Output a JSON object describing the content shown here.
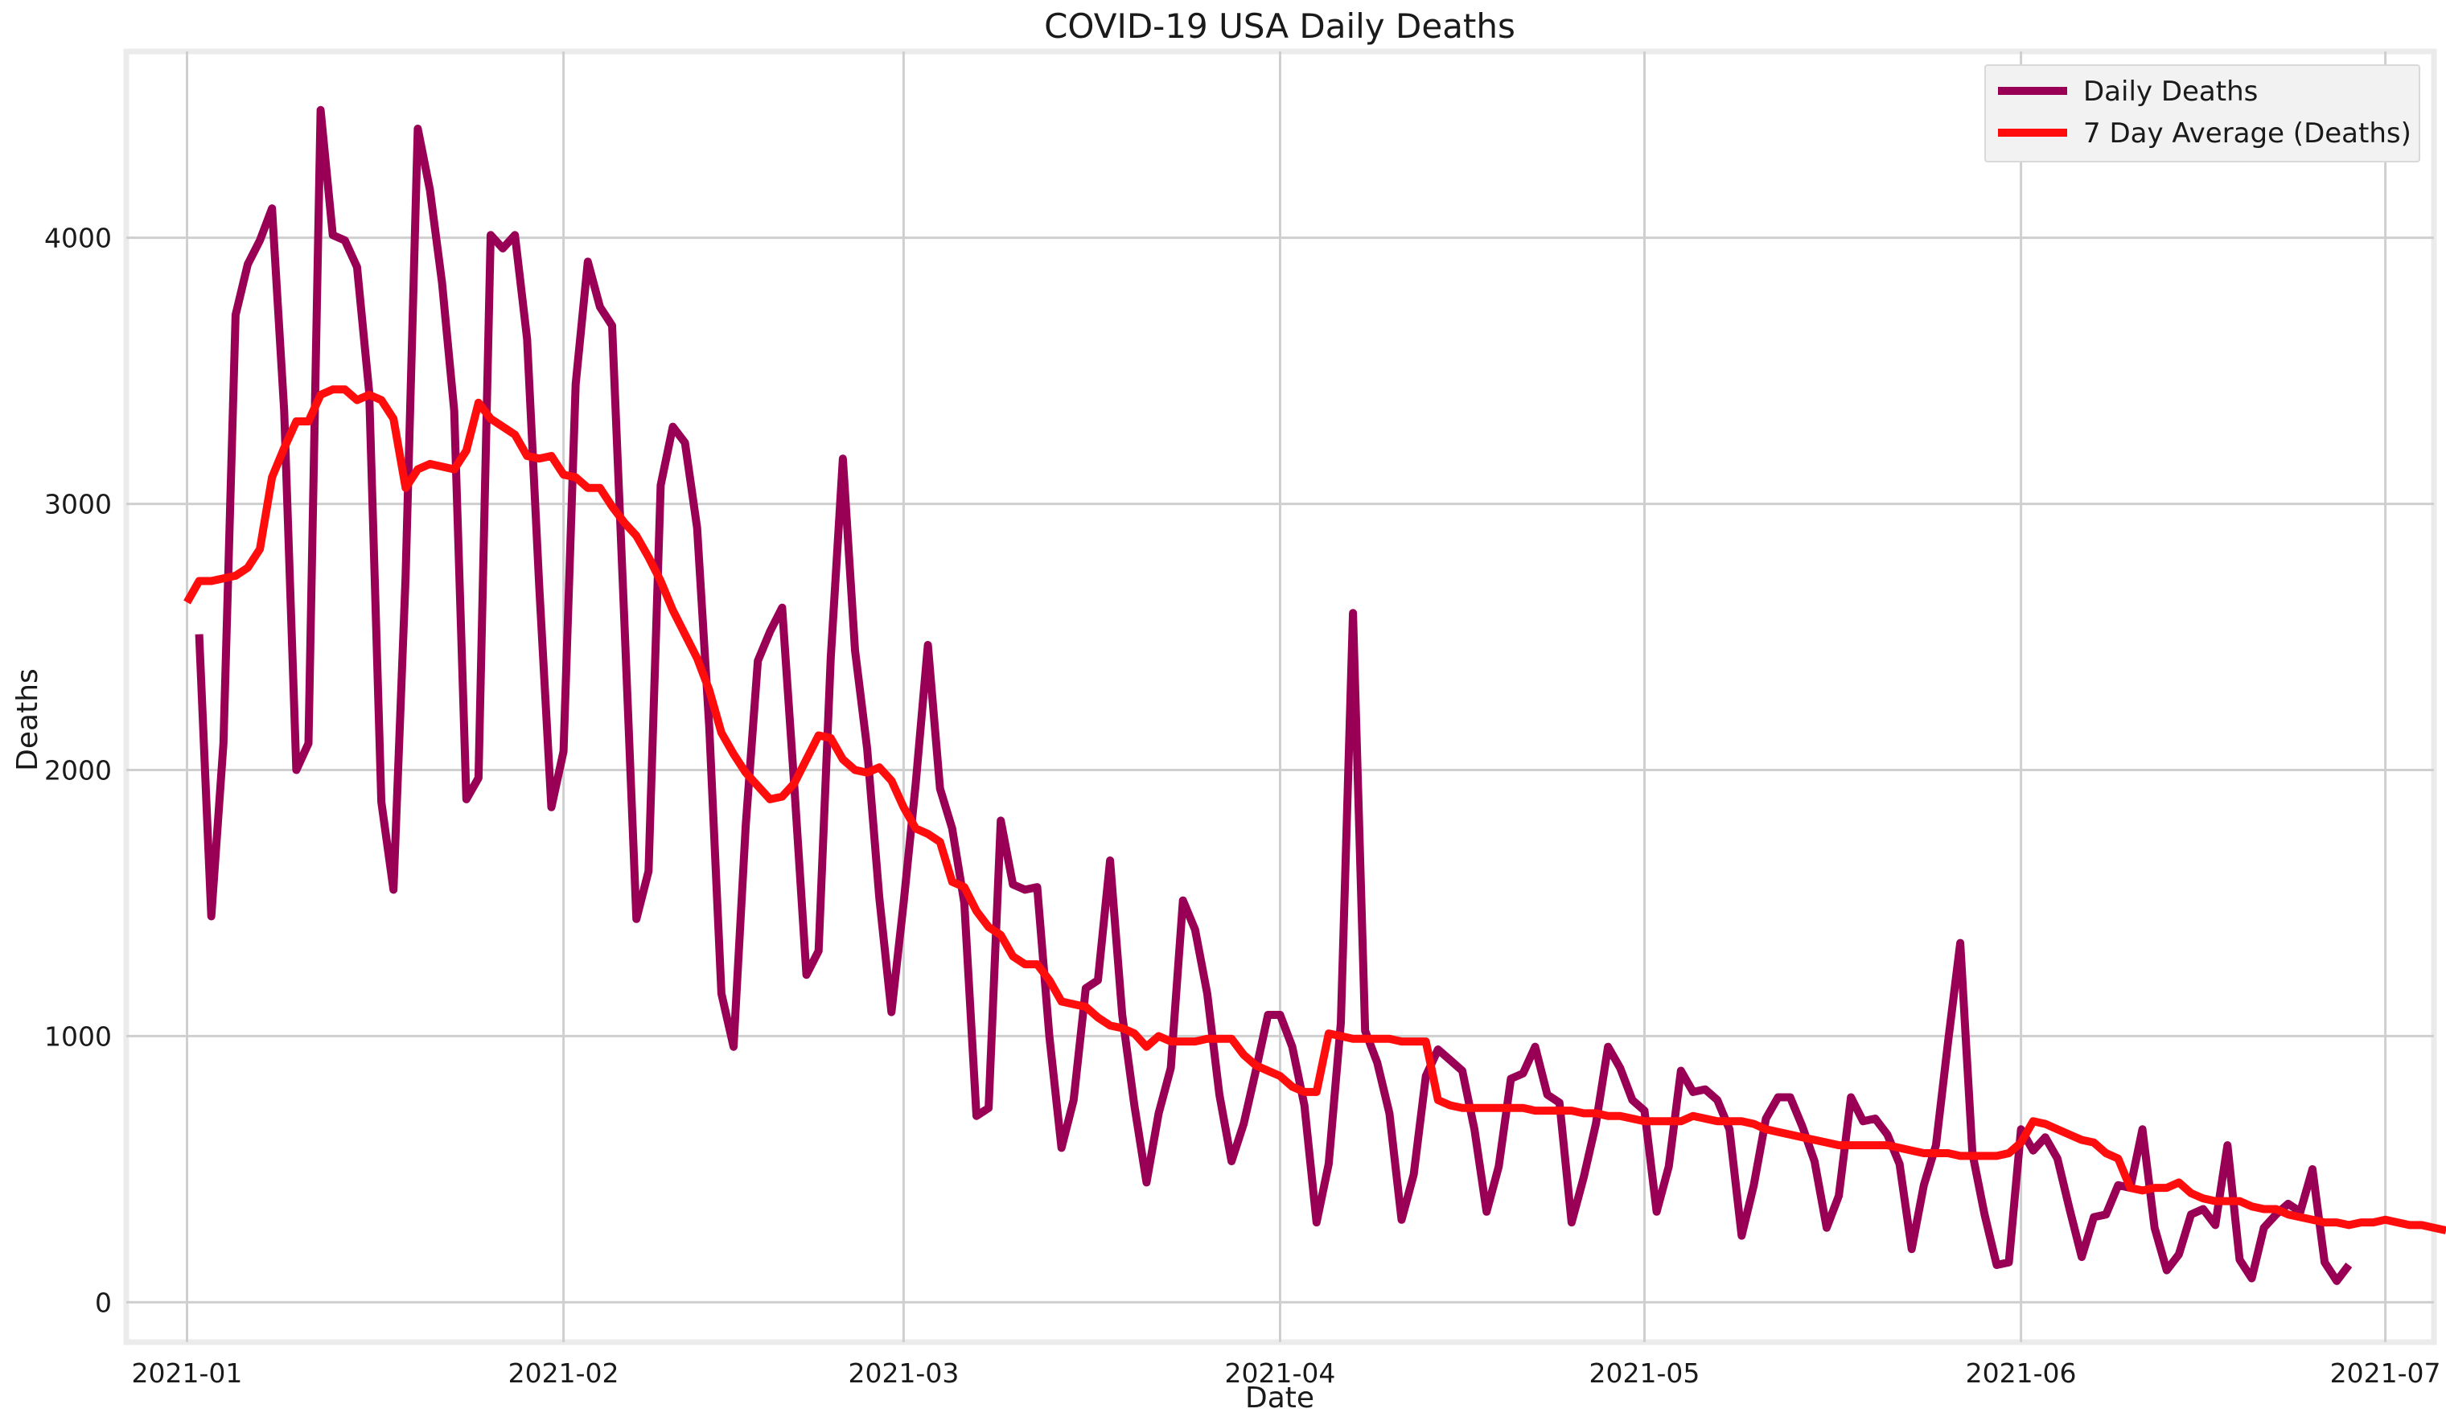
{
  "chart_data": {
    "type": "line",
    "title": "COVID-19 USA Daily Deaths",
    "xlabel": "Date",
    "ylabel": "Deaths",
    "x_start": "2021-01-01",
    "x_end": "2021-06-29",
    "xlim": [
      "2020-12-27",
      "2021-07-05"
    ],
    "ylim": [
      -150,
      4700
    ],
    "x_ticks": [
      "2021-01",
      "2021-02",
      "2021-03",
      "2021-04",
      "2021-05",
      "2021-06",
      "2021-07"
    ],
    "y_ticks": [
      0,
      1000,
      2000,
      3000,
      4000
    ],
    "grid": true,
    "legend_position": "top-right",
    "series": [
      {
        "name": "Daily Deaths",
        "color": "#990055",
        "start": "2021-01-02",
        "values": [
          2510,
          1450,
          2100,
          3710,
          3900,
          3990,
          4110,
          3350,
          2000,
          2100,
          4480,
          4010,
          3990,
          3890,
          3420,
          1880,
          1550,
          2730,
          4410,
          4180,
          3830,
          3350,
          1890,
          1970,
          4010,
          3960,
          4010,
          3620,
          2690,
          1860,
          2070,
          3450,
          3910,
          3740,
          3670,
          2570,
          1440,
          1620,
          3070,
          3290,
          3230,
          2910,
          2160,
          1160,
          960,
          1790,
          2410,
          2520,
          2610,
          1940,
          1230,
          1320,
          2420,
          3170,
          2450,
          2080,
          1520,
          1090,
          1500,
          1950,
          2470,
          1930,
          1780,
          1500,
          700,
          730,
          1810,
          1570,
          1550,
          1560,
          1000,
          580,
          760,
          1180,
          1210,
          1660,
          1080,
          740,
          450,
          710,
          880,
          1510,
          1400,
          1160,
          780,
          530,
          670,
          870,
          1080,
          1080,
          960,
          740,
          300,
          520,
          1050,
          2590,
          1020,
          900,
          710,
          310,
          480,
          850,
          950,
          910,
          870,
          650,
          340,
          510,
          840,
          860,
          960,
          780,
          750,
          300,
          470,
          670,
          960,
          880,
          760,
          720,
          340,
          510,
          870,
          790,
          800,
          760,
          650,
          250,
          440,
          690,
          770,
          770,
          660,
          530,
          280,
          400,
          770,
          680,
          690,
          630,
          520,
          200,
          440,
          590,
          980,
          1350,
          560,
          330,
          140,
          150,
          650,
          570,
          620,
          540,
          350,
          170,
          320,
          330,
          440,
          430,
          650,
          280,
          120,
          180,
          330,
          350,
          290,
          590,
          160,
          90,
          280,
          330,
          370,
          340,
          500,
          150,
          80,
          140
        ]
      },
      {
        "name": "7 Day Average (Deaths)",
        "color": "#ff0d0d",
        "start": "2021-01-01",
        "values": [
          2630,
          2710,
          2710,
          2720,
          2730,
          2760,
          2830,
          3100,
          3210,
          3310,
          3310,
          3410,
          3430,
          3430,
          3390,
          3410,
          3390,
          3320,
          3060,
          3130,
          3150,
          3140,
          3130,
          3200,
          3380,
          3320,
          3290,
          3260,
          3180,
          3170,
          3180,
          3110,
          3100,
          3060,
          3060,
          2990,
          2930,
          2880,
          2800,
          2710,
          2600,
          2510,
          2420,
          2300,
          2140,
          2060,
          1990,
          1940,
          1890,
          1900,
          1950,
          2040,
          2130,
          2120,
          2040,
          2000,
          1990,
          2010,
          1960,
          1860,
          1780,
          1760,
          1730,
          1580,
          1560,
          1470,
          1410,
          1380,
          1300,
          1270,
          1270,
          1210,
          1130,
          1120,
          1110,
          1070,
          1040,
          1030,
          1010,
          960,
          1000,
          980,
          980,
          980,
          990,
          990,
          990,
          930,
          890,
          870,
          850,
          810,
          790,
          790,
          1010,
          1000,
          990,
          990,
          990,
          990,
          980,
          980,
          980,
          760,
          740,
          730,
          730,
          730,
          730,
          730,
          730,
          720,
          720,
          720,
          720,
          710,
          710,
          700,
          700,
          690,
          680,
          680,
          680,
          680,
          700,
          690,
          680,
          680,
          680,
          670,
          650,
          640,
          630,
          620,
          610,
          600,
          590,
          590,
          590,
          590,
          590,
          580,
          570,
          560,
          560,
          560,
          550,
          550,
          550,
          550,
          560,
          600,
          680,
          670,
          650,
          630,
          610,
          600,
          560,
          540,
          430,
          420,
          430,
          430,
          450,
          410,
          390,
          380,
          380,
          380,
          360,
          350,
          350,
          330,
          320,
          310,
          300,
          300,
          290,
          300,
          300,
          310,
          300,
          290,
          290,
          280,
          270
        ]
      }
    ]
  }
}
